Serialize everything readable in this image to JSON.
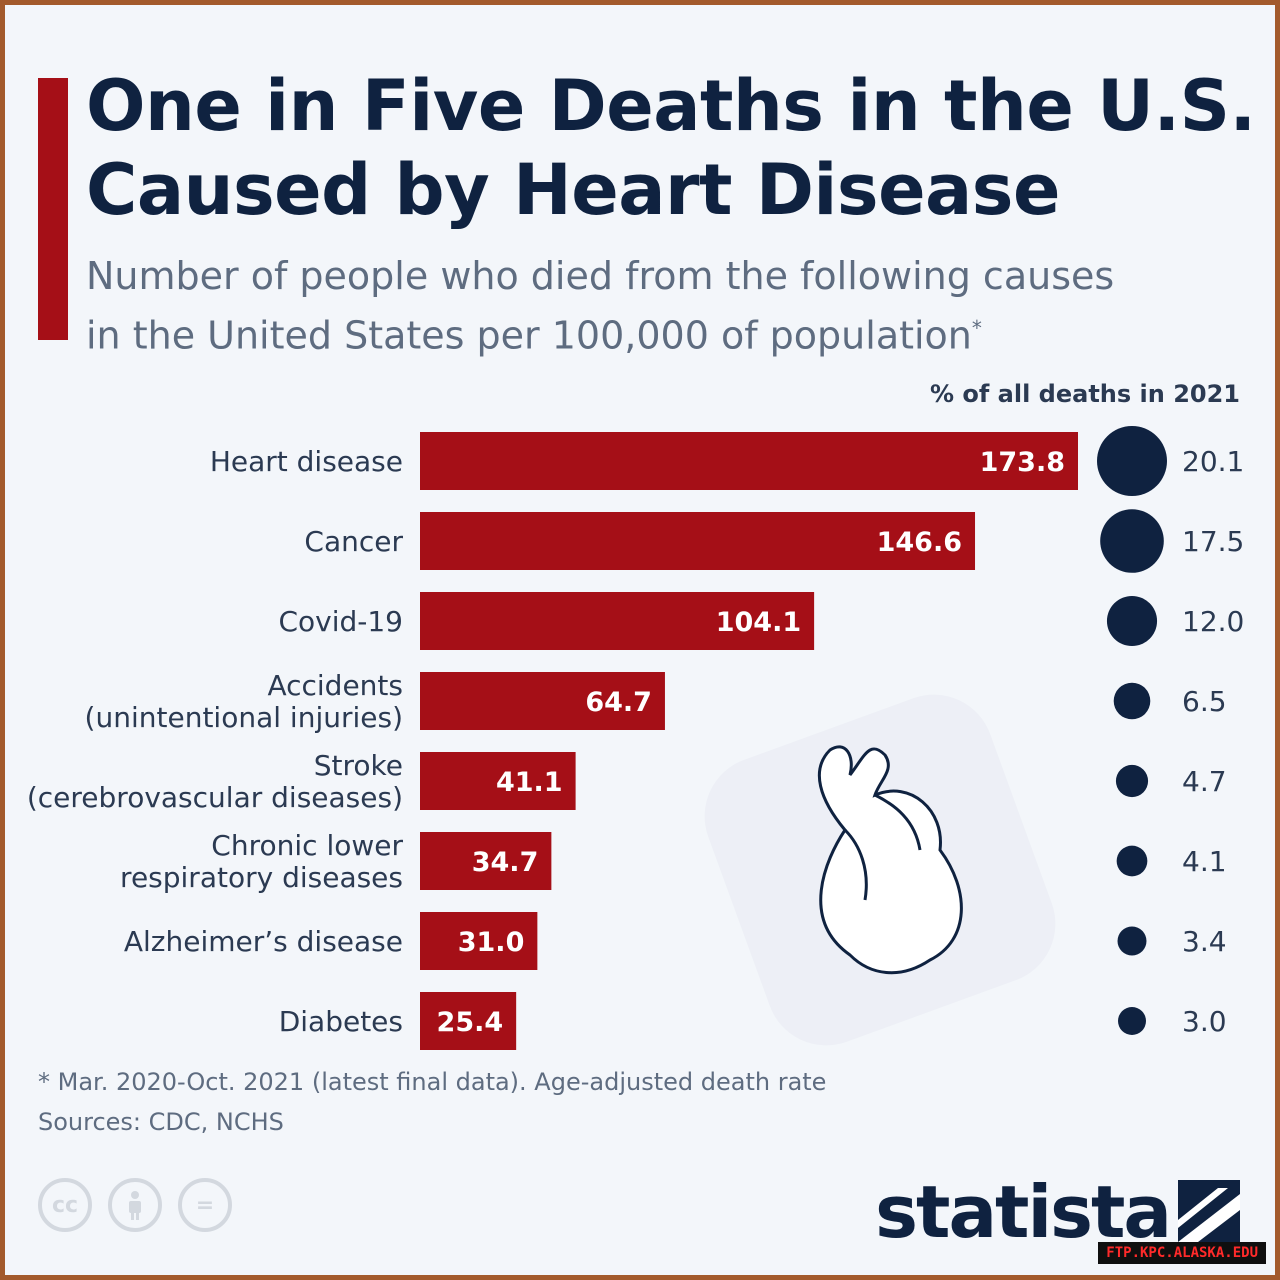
{
  "header": {
    "title_line1": "One in Five Deaths in the U.S.",
    "title_line2": "Caused by Heart Disease",
    "subtitle_line1": "Number of people who died from the following causes",
    "subtitle_line2": "in the United States per 100,000 of population",
    "subtitle_mark": "*"
  },
  "pct_header": "% of all deaths in 2021",
  "chart_data": {
    "type": "bar",
    "orientation": "horizontal",
    "categories": [
      [
        "Heart disease"
      ],
      [
        "Cancer"
      ],
      [
        "Covid-19"
      ],
      [
        "Accidents",
        "(unintentional injuries)"
      ],
      [
        "Stroke",
        "(cerebrovascular diseases)"
      ],
      [
        "Chronic lower",
        "respiratory diseases"
      ],
      [
        "Alzheimer’s disease"
      ],
      [
        "Diabetes"
      ]
    ],
    "values": [
      173.8,
      146.6,
      104.1,
      64.7,
      41.1,
      34.7,
      31.0,
      25.4
    ],
    "value_labels": [
      "173.8",
      "146.6",
      "104.1",
      "64.7",
      "41.1",
      "34.7",
      "31.0",
      "25.4"
    ],
    "pct_of_all_deaths": [
      20.1,
      17.5,
      12.0,
      6.5,
      4.7,
      4.1,
      3.4,
      3.0
    ],
    "pct_labels": [
      "20.1",
      "17.5",
      "12.0",
      "6.5",
      "4.7",
      "4.1",
      "3.4",
      "3.0"
    ],
    "bar_color": "#a50f17",
    "dot_color": "#0f2240",
    "xlim": [
      0,
      173.8
    ]
  },
  "footnote": "* Mar. 2020-Oct. 2021 (latest final data). Age-adjusted death rate",
  "sources": "Sources: CDC, NCHS",
  "license_icons": [
    "cc",
    "by",
    "nd"
  ],
  "brand": "statista",
  "watermark": "FTP.KPC.ALASKA.EDU"
}
